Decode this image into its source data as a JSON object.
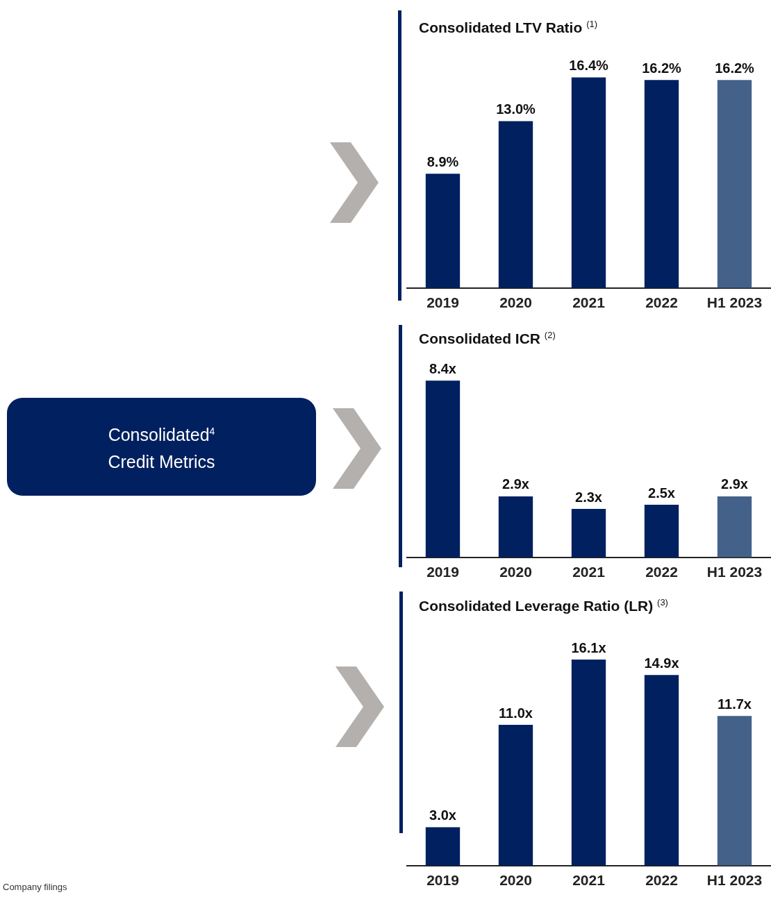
{
  "chart_data": [
    {
      "type": "bar",
      "title": "Consolidated LTV Ratio $^{(1)}$",
      "categories": [
        "2019",
        "2020",
        "2021",
        "2022",
        "H1 2023"
      ],
      "values": [
        8.9,
        13.0,
        16.4,
        16.2,
        16.2
      ],
      "colors": [
        "#002060",
        "#002060",
        "#002060",
        "#002060",
        "#44618a"
      ],
      "value_labels": [
        "8.9%",
        "13.0%",
        "16.4%",
        "16.2%",
        "16.2%"
      ],
      "tick_labels": "x",
      "grid": false,
      "legend": false
    },
    {
      "type": "bar",
      "title": "Consolidated ICR $^{(2)}$",
      "categories": [
        "2019",
        "2020",
        "2021",
        "2022",
        "H1 2023"
      ],
      "values": [
        8.4,
        2.9,
        2.3,
        2.5,
        2.9
      ],
      "colors": [
        "#002060",
        "#002060",
        "#002060",
        "#002060",
        "#44618a"
      ],
      "value_labels": [
        "8.4x",
        "2.9x",
        "2.3x",
        "2.5x",
        "2.9x"
      ],
      "tick_labels": "x",
      "grid": false,
      "legend": false
    },
    {
      "type": "bar",
      "title": "Consolidated Leverage Ratio (LR) $^{(3)}$",
      "categories": [
        "2019",
        "2020",
        "2021",
        "2022",
        "H1 2023"
      ],
      "values": [
        3.0,
        11.0,
        16.1,
        14.9,
        11.7
      ],
      "colors": [
        "#002060",
        "#002060",
        "#002060",
        "#002060",
        "#44618a"
      ],
      "value_labels": [
        "3.0x",
        "11.0x",
        "16.1x",
        "14.9x",
        "11.7x"
      ],
      "tick_labels": "x",
      "grid": false,
      "legend": false
    },
    {
      "type": "other",
      "title": "Consolidated$^{4}$ Credit Metrics",
      "annotations": [
        "Company filings"
      ]
    }
  ]
}
